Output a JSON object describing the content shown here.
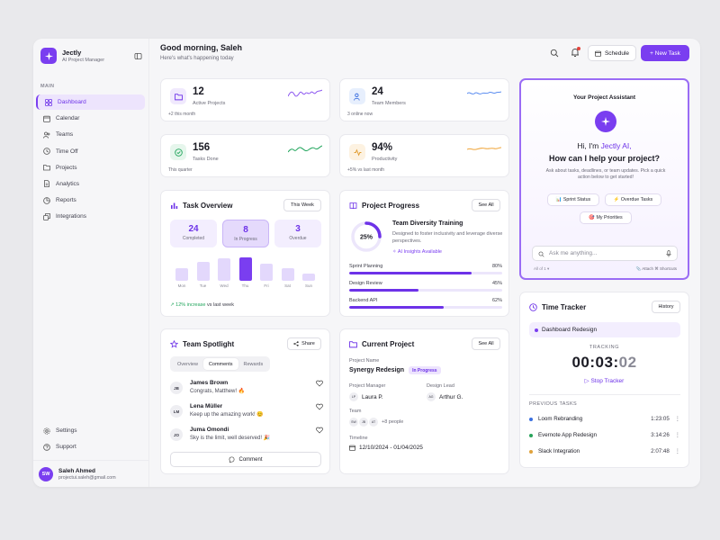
{
  "brand": {
    "name": "Jectly",
    "subtitle": "AI Project Manager"
  },
  "sidebar": {
    "section_label": "MAIN",
    "items": [
      {
        "label": "Dashboard",
        "icon": "grid-icon",
        "active": true
      },
      {
        "label": "Calendar",
        "icon": "calendar-icon"
      },
      {
        "label": "Teams",
        "icon": "users-icon"
      },
      {
        "label": "Time Off",
        "icon": "clock-icon"
      },
      {
        "label": "Projects",
        "icon": "folder-icon"
      },
      {
        "label": "Analytics",
        "icon": "document-icon"
      },
      {
        "label": "Reports",
        "icon": "chart-pie-icon"
      },
      {
        "label": "Integrations",
        "icon": "stack-icon"
      }
    ],
    "bottom_items": [
      {
        "label": "Settings",
        "icon": "gear-icon"
      },
      {
        "label": "Support",
        "icon": "help-icon"
      }
    ],
    "user": {
      "initials": "SW",
      "name": "Saleh Ahmed",
      "email": "projectui.saleh@gmail.com"
    }
  },
  "header": {
    "greeting": "Good morning, Saleh",
    "subtitle": "Here's what's happening today",
    "schedule_label": "Schedule",
    "new_task_label": "+ New Task"
  },
  "stats": [
    {
      "value": "12",
      "label": "Active Projects",
      "note": "+2 this month",
      "icon": "folder-icon"
    },
    {
      "value": "24",
      "label": "Team Members",
      "note": "3 online now",
      "icon": "users-icon"
    },
    {
      "value": "156",
      "label": "Tasks Done",
      "note": "This quarter",
      "icon": "check-circle-icon"
    },
    {
      "value": "94%",
      "label": "Productivity",
      "note": "+5% vs last month",
      "icon": "pulse-icon"
    }
  ],
  "task_overview": {
    "title": "Task Overview",
    "range_label": "This Week",
    "kpis": [
      {
        "value": "24",
        "label": "Completed"
      },
      {
        "value": "8",
        "label": "In Progress"
      },
      {
        "value": "3",
        "label": "Overdue"
      }
    ],
    "days": [
      "Mon",
      "Tue",
      "Wed",
      "Thu",
      "Fri",
      "Sat",
      "Sun"
    ],
    "bar_levels": [
      0.55,
      0.8,
      0.95,
      1.0,
      0.75,
      0.55,
      0.3
    ],
    "highlight_day": "Thu",
    "increase_text": "12% increase",
    "increase_suffix": "vs last week"
  },
  "project_progress": {
    "title": "Project Progress",
    "see_all": "See All",
    "ring_percent": "25%",
    "ring_value": 0.25,
    "team_title": "Team Diversity Training",
    "team_desc": "Designed to foster inclusivity and leverage diverse perspectives.",
    "ai_link": "AI Insights Available",
    "rows": [
      {
        "label": "Sprint Planning",
        "percent": "80%",
        "value": 0.8
      },
      {
        "label": "Design Review",
        "percent": "45%",
        "value": 0.45
      },
      {
        "label": "Backend API",
        "percent": "62%",
        "value": 0.62
      }
    ]
  },
  "spotlight": {
    "title": "Team Spotlight",
    "share_label": "Share",
    "tabs": [
      "Overview",
      "Comments",
      "Rewards"
    ],
    "comments": [
      {
        "initials": "JB",
        "name": "James Brown",
        "text": "Congrats, Matthew! 🔥"
      },
      {
        "initials": "LM",
        "name": "Lena Müller",
        "text": "Keep up the amazing work! 😊"
      },
      {
        "initials": "JO",
        "name": "Juma Omondi",
        "text": "Sky is the limit, well deserved! 🎉"
      }
    ],
    "comment_button": "Comment"
  },
  "current_project": {
    "title": "Current Project",
    "see_all": "See All",
    "name_label": "Project Name",
    "name": "Synergy Redesign",
    "status": "In Progress",
    "manager_label": "Project Manager",
    "manager_initials": "LP",
    "manager": "Laura P.",
    "lead_label": "Design Lead",
    "lead_initials": "AG",
    "lead": "Arthur G.",
    "team_label": "Team",
    "team_initials": [
      "SW",
      "JB",
      "AT"
    ],
    "team_more": "+8 people",
    "timeline_label": "Timeline",
    "timeline": "12/10/2024 - 01/04/2025"
  },
  "assistant": {
    "title": "Your Project Assistant",
    "hi_prefix": "Hi, I'm",
    "hi_name": "Jectly AI,",
    "question": "How can I help your project?",
    "desc": "Ask about tasks, deadlines, or team updates. Pick a quick action below to get started!",
    "chips": [
      "📊 Sprint Status",
      "⚡ Overdue Tasks",
      "🎯 My Priorities"
    ],
    "input_placeholder": "Ask me anything...",
    "footer_left": "All of 1 ▾",
    "footer_right": "📎 Attach   ⌘ Shortcuts"
  },
  "time_tracker": {
    "title": "Time Tracker",
    "history_label": "History",
    "current_task": "Dashboard Redesign",
    "tracking_label": "TRACKING",
    "timer_main": "00:03:",
    "timer_tail": "02",
    "stop_label": "Stop Tracker",
    "previous_label": "PREVIOUS TASKS",
    "previous": [
      {
        "name": "Loom Rebranding",
        "time": "1:23:05",
        "color": "#3b6fe0"
      },
      {
        "name": "Evernote App Redesign",
        "time": "3:14:26",
        "color": "#27a35a"
      },
      {
        "name": "Slack Integration",
        "time": "2:07:48",
        "color": "#e0a23b"
      }
    ]
  },
  "colors": {
    "accent": "#7a3ef0",
    "accent_light": "#ede4fd",
    "success": "#21a55c"
  }
}
